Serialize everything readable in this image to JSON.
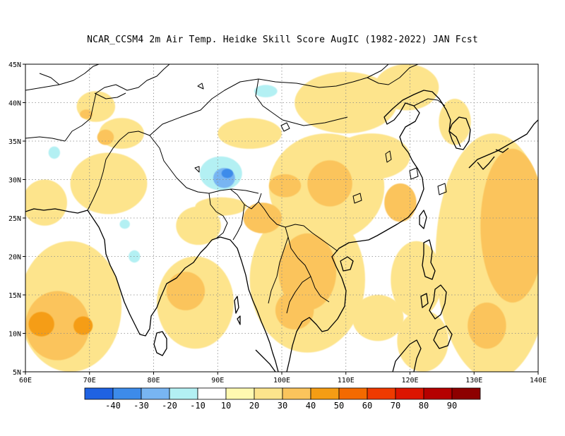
{
  "title": "NCAR_CCSM4  2m Air Temp. Heidke Skill Score AugIC (1982-2022) JAN Fcst",
  "map": {
    "lon_range": [
      60,
      140
    ],
    "lat_range": [
      5,
      45
    ],
    "lon_ticks": [
      {
        "value": 60,
        "label": "60E"
      },
      {
        "value": 70,
        "label": "70E"
      },
      {
        "value": 80,
        "label": "80E"
      },
      {
        "value": 90,
        "label": "90E"
      },
      {
        "value": 100,
        "label": "100E"
      },
      {
        "value": 110,
        "label": "110E"
      },
      {
        "value": 120,
        "label": "120E"
      },
      {
        "value": 130,
        "label": "130E"
      },
      {
        "value": 140,
        "label": "140E"
      }
    ],
    "lat_ticks": [
      {
        "value": 5,
        "label": "5N"
      },
      {
        "value": 10,
        "label": "10N"
      },
      {
        "value": 15,
        "label": "15N"
      },
      {
        "value": 20,
        "label": "20N"
      },
      {
        "value": 25,
        "label": "25N"
      },
      {
        "value": 30,
        "label": "30N"
      },
      {
        "value": 35,
        "label": "35N"
      },
      {
        "value": 40,
        "label": "40N"
      },
      {
        "value": 45,
        "label": "45N"
      }
    ],
    "grid_lines": "dotted",
    "regions": [
      {
        "type": "ellipse",
        "lon": 90.5,
        "lat": 30.8,
        "rlon": 3.3,
        "rlat": 2.2,
        "level": -10
      },
      {
        "type": "ellipse",
        "lon": 91.0,
        "lat": 30.2,
        "rlon": 1.7,
        "rlat": 1.3,
        "level": -20
      },
      {
        "type": "ellipse",
        "lon": 91.5,
        "lat": 30.8,
        "rlon": 0.9,
        "rlat": 0.6,
        "level": -30
      },
      {
        "type": "ellipse",
        "lon": 97.5,
        "lat": 41.5,
        "rlon": 1.8,
        "rlat": 0.8,
        "level": -10
      },
      {
        "type": "ellipse",
        "lon": 64.5,
        "lat": 33.5,
        "rlon": 0.9,
        "rlat": 0.8,
        "level": -10
      },
      {
        "type": "ellipse",
        "lon": 75.5,
        "lat": 24.2,
        "rlon": 0.8,
        "rlat": 0.6,
        "level": -10
      },
      {
        "type": "ellipse",
        "lon": 77.0,
        "lat": 20.0,
        "rlon": 0.9,
        "rlat": 0.8,
        "level": -10
      },
      {
        "type": "ellipse",
        "lon": 67.0,
        "lat": 13.5,
        "rlon": 8.0,
        "rlat": 8.5,
        "level": 20
      },
      {
        "type": "ellipse",
        "lon": 65.0,
        "lat": 11.0,
        "rlon": 5.0,
        "rlat": 4.5,
        "level": 30
      },
      {
        "type": "ellipse",
        "lon": 62.5,
        "lat": 11.2,
        "rlon": 2.0,
        "rlat": 1.6,
        "level": 40
      },
      {
        "type": "ellipse",
        "lon": 69.0,
        "lat": 11.0,
        "rlon": 1.5,
        "rlat": 1.2,
        "level": 40
      },
      {
        "type": "ellipse",
        "lon": 86.5,
        "lat": 14.0,
        "rlon": 6.0,
        "rlat": 6.0,
        "level": 20
      },
      {
        "type": "ellipse",
        "lon": 85.0,
        "lat": 15.5,
        "rlon": 3.0,
        "rlat": 2.5,
        "level": 30
      },
      {
        "type": "ellipse",
        "lon": 104.0,
        "lat": 17.0,
        "rlon": 9.0,
        "rlat": 9.5,
        "level": 20
      },
      {
        "type": "ellipse",
        "lon": 104.0,
        "lat": 18.0,
        "rlon": 4.5,
        "rlat": 5.0,
        "level": 30
      },
      {
        "type": "ellipse",
        "lon": 102.0,
        "lat": 13.0,
        "rlon": 3.0,
        "rlat": 2.5,
        "level": 30
      },
      {
        "type": "ellipse",
        "lon": 107.0,
        "lat": 29.0,
        "rlon": 9.0,
        "rlat": 7.0,
        "level": 20
      },
      {
        "type": "ellipse",
        "lon": 107.5,
        "lat": 29.5,
        "rlon": 3.5,
        "rlat": 3.0,
        "level": 30
      },
      {
        "type": "ellipse",
        "lon": 100.5,
        "lat": 29.2,
        "rlon": 2.5,
        "rlat": 1.5,
        "level": 30
      },
      {
        "type": "ellipse",
        "lon": 110.0,
        "lat": 40.0,
        "rlon": 8.0,
        "rlat": 4.0,
        "level": 20
      },
      {
        "type": "ellipse",
        "lon": 119.5,
        "lat": 42.0,
        "rlon": 5.0,
        "rlat": 3.0,
        "level": 20
      },
      {
        "type": "ellipse",
        "lon": 95.0,
        "lat": 36.0,
        "rlon": 5.0,
        "rlat": 2.0,
        "level": 20
      },
      {
        "type": "ellipse",
        "lon": 133.0,
        "lat": 20.0,
        "rlon": 9.0,
        "rlat": 16.0,
        "level": 20
      },
      {
        "type": "ellipse",
        "lon": 136.0,
        "lat": 24.0,
        "rlon": 5.0,
        "rlat": 10.0,
        "level": 30
      },
      {
        "type": "ellipse",
        "lon": 132.0,
        "lat": 11.0,
        "rlon": 3.0,
        "rlat": 3.0,
        "level": 30
      },
      {
        "type": "ellipse",
        "lon": 121.0,
        "lat": 17.0,
        "rlon": 4.0,
        "rlat": 5.0,
        "level": 20
      },
      {
        "type": "ellipse",
        "lon": 122.0,
        "lat": 9.0,
        "rlon": 4.0,
        "rlat": 4.0,
        "level": 20
      },
      {
        "type": "ellipse",
        "lon": 115.0,
        "lat": 12.0,
        "rlon": 4.0,
        "rlat": 3.0,
        "level": 20
      },
      {
        "type": "ellipse",
        "lon": 73.0,
        "lat": 29.5,
        "rlon": 6.0,
        "rlat": 4.0,
        "level": 20
      },
      {
        "type": "ellipse",
        "lon": 75.0,
        "lat": 36.0,
        "rlon": 3.5,
        "rlat": 2.0,
        "level": 20
      },
      {
        "type": "ellipse",
        "lon": 71.0,
        "lat": 39.5,
        "rlon": 3.0,
        "rlat": 2.0,
        "level": 20
      },
      {
        "type": "ellipse",
        "lon": 72.5,
        "lat": 35.5,
        "rlon": 1.3,
        "rlat": 1.0,
        "level": 30
      },
      {
        "type": "ellipse",
        "lon": 69.5,
        "lat": 38.5,
        "rlon": 1.0,
        "rlat": 0.6,
        "level": 30
      },
      {
        "type": "ellipse",
        "lon": 63.0,
        "lat": 27.0,
        "rlon": 3.5,
        "rlat": 3.0,
        "level": 20
      },
      {
        "type": "ellipse",
        "lon": 87.0,
        "lat": 24.0,
        "rlon": 3.5,
        "rlat": 2.5,
        "level": 20
      },
      {
        "type": "ellipse",
        "lon": 90.5,
        "lat": 26.5,
        "rlon": 4.0,
        "rlat": 1.2,
        "level": 20
      },
      {
        "type": "ellipse",
        "lon": 97.0,
        "lat": 25.0,
        "rlon": 3.0,
        "rlat": 2.0,
        "level": 30
      },
      {
        "type": "ellipse",
        "lon": 114.0,
        "lat": 33.0,
        "rlon": 6.0,
        "rlat": 3.0,
        "level": 20
      },
      {
        "type": "ellipse",
        "lon": 127.0,
        "lat": 37.5,
        "rlon": 2.5,
        "rlat": 3.0,
        "level": 20
      },
      {
        "type": "ellipse",
        "lon": 118.5,
        "lat": 27.0,
        "rlon": 2.5,
        "rlat": 2.5,
        "level": 30
      }
    ]
  },
  "colorbar": {
    "colors": [
      "#1f62e2",
      "#3d8bea",
      "#78b5f2",
      "#b3f0f3",
      "#ffffff",
      "#fff9b0",
      "#fde48c",
      "#fbc45c",
      "#f59d14",
      "#f46a00",
      "#ef3a00",
      "#dc1500",
      "#b50000",
      "#8d0000"
    ],
    "labels": [
      "-40",
      "-30",
      "-20",
      "-10",
      "10",
      "20",
      "30",
      "40",
      "50",
      "60",
      "70",
      "80",
      "90"
    ]
  }
}
